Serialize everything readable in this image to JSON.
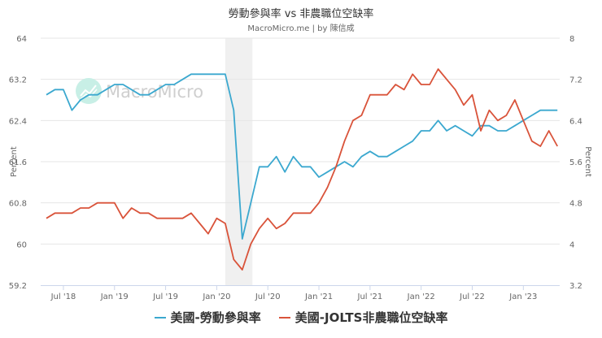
{
  "header": {
    "title": "勞動參與率 vs 非農職位空缺率",
    "subtitle": "MacroMicro.me | by 陳信成"
  },
  "watermark": {
    "text": "MacroMicro",
    "icon": "macromicro-logo-icon"
  },
  "legend": [
    {
      "label": "美國-勞動參與率",
      "color": "#3ba8cf"
    },
    {
      "label": "美國-JOLTS非農職位空缺率",
      "color": "#d9533a"
    }
  ],
  "colors": {
    "gridline": "#e6e6e6",
    "recession_band": "#f0f0f0",
    "axis_line": "#ccd6eb"
  },
  "chart_data": {
    "type": "line",
    "title": "勞動參與率 vs 非農職位空缺率",
    "subtitle": "MacroMicro.me | by 陳信成",
    "x_start": "2018-05",
    "x_end": "2023-05",
    "frequency": "monthly",
    "x_tick_labels": [
      "Jul '18",
      "Jan '19",
      "Jul '19",
      "Jan '20",
      "Jul '20",
      "Jan '21",
      "Jul '21",
      "Jan '22",
      "Jul '22",
      "Jan '23"
    ],
    "x_tick_index": [
      2,
      8,
      14,
      20,
      26,
      32,
      38,
      44,
      50,
      56
    ],
    "left_axis": {
      "label": "Percent",
      "ticks": [
        59.2,
        60,
        60.8,
        61.6,
        62.4,
        63.2,
        64
      ],
      "ylim": [
        59.2,
        64
      ]
    },
    "right_axis": {
      "label": "Percent",
      "ticks": [
        3.2,
        4,
        4.8,
        5.6,
        6.4,
        7.2,
        8
      ],
      "ylim": [
        3.2,
        8
      ]
    },
    "shaded_region": {
      "from_index": 21,
      "to_index": 24,
      "note": "recession"
    },
    "grid": true,
    "legend_position": "bottom",
    "series": [
      {
        "name": "美國-勞動參與率",
        "axis": "left",
        "color": "#3ba8cf",
        "values": [
          62.9,
          63.0,
          63.0,
          62.6,
          62.8,
          62.9,
          62.9,
          63.0,
          63.1,
          63.1,
          63.0,
          62.9,
          62.9,
          63.0,
          63.1,
          63.1,
          63.2,
          63.3,
          63.3,
          63.3,
          63.3,
          63.3,
          62.6,
          60.1,
          60.8,
          61.5,
          61.5,
          61.7,
          61.4,
          61.7,
          61.5,
          61.5,
          61.3,
          61.4,
          61.5,
          61.6,
          61.5,
          61.7,
          61.8,
          61.7,
          61.7,
          61.8,
          61.9,
          62.0,
          62.2,
          62.2,
          62.4,
          62.2,
          62.3,
          62.2,
          62.1,
          62.3,
          62.3,
          62.2,
          62.2,
          62.3,
          62.4,
          62.5,
          62.6,
          62.6,
          62.6
        ]
      },
      {
        "name": "美國-JOLTS非農職位空缺率",
        "axis": "right",
        "color": "#d9533a",
        "values": [
          4.5,
          4.6,
          4.6,
          4.6,
          4.7,
          4.7,
          4.8,
          4.8,
          4.8,
          4.5,
          4.7,
          4.6,
          4.6,
          4.5,
          4.5,
          4.5,
          4.5,
          4.6,
          4.4,
          4.2,
          4.5,
          4.4,
          3.7,
          3.5,
          4.0,
          4.3,
          4.5,
          4.3,
          4.4,
          4.6,
          4.6,
          4.6,
          4.8,
          5.1,
          5.5,
          6.0,
          6.4,
          6.5,
          6.9,
          6.9,
          6.9,
          7.1,
          7.0,
          7.3,
          7.1,
          7.1,
          7.4,
          7.2,
          7.0,
          6.7,
          6.9,
          6.2,
          6.6,
          6.4,
          6.5,
          6.8,
          6.4,
          6.0,
          5.9,
          6.2,
          5.9
        ]
      }
    ]
  }
}
